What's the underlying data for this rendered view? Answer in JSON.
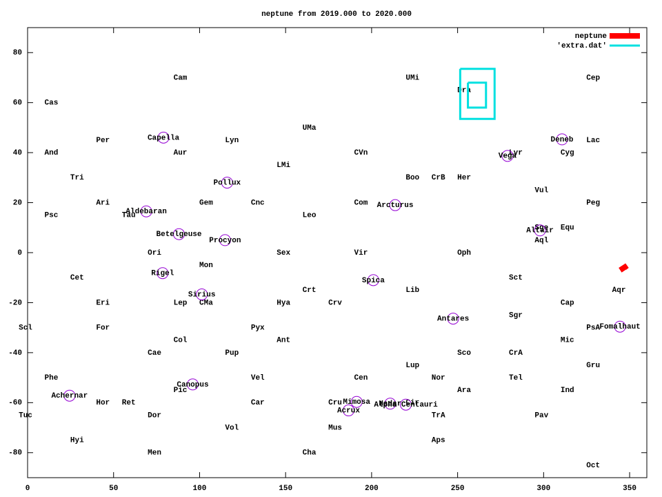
{
  "chart_data": {
    "type": "line",
    "title": "neptune from 2019.000 to 2020.000",
    "xlim": [
      0,
      360
    ],
    "ylim": [
      -90,
      90
    ],
    "xticks": [
      0,
      50,
      100,
      150,
      200,
      250,
      300,
      350
    ],
    "yticks": [
      -80,
      -60,
      -40,
      -20,
      0,
      20,
      40,
      60,
      80
    ],
    "legend": "top right",
    "series": [
      {
        "name": "neptune",
        "color": "#ff0000",
        "x": [
          344.5,
          348.5,
          347
        ],
        "values": [
          -7,
          -5.2,
          -6
        ]
      },
      {
        "name": "'extra.dat'",
        "color": "#00e0e0",
        "x": [
          251.5,
          271.5,
          271.5,
          251.5,
          251.5,
          null,
          256,
          266.5,
          266.5,
          256,
          256
        ],
        "values": [
          73.5,
          73.5,
          53.5,
          53.5,
          73.5,
          null,
          68,
          68,
          58,
          58,
          68
        ]
      }
    ],
    "constellations": {
      "names": [
        "Cam",
        "Cas",
        "And",
        "Per",
        "Tri",
        "Ari",
        "Psc",
        "Tau",
        "Aur",
        "Lyn",
        "Gem",
        "Cnc",
        "UMa",
        "LMi",
        "Leo",
        "Ori",
        "Mon",
        "Sex",
        "Cet",
        "Eri",
        "Lep",
        "CMa",
        "Hya",
        "Crt",
        "Crv",
        "Scl",
        "For",
        "Col",
        "Pyx",
        "Ant",
        "Cae",
        "Pup",
        "Phe",
        "Vel",
        "Pic",
        "Tuc",
        "Hor",
        "Ret",
        "Car",
        "Dor",
        "Hyi",
        "Vol",
        "Men",
        "Cha",
        "Mus",
        "Cru",
        "Cen",
        "UMi",
        "Cep",
        "Dra",
        "CVn",
        "Boo",
        "CrB",
        "Her",
        "Vul",
        "Lyr",
        "Cyg",
        "Lac",
        "Peg",
        "Com",
        "Sge",
        "Aql",
        "Equ",
        "Vir",
        "Oph",
        "Sct",
        "Lib",
        "Sgr",
        "Cap",
        "Aqr",
        "PsA",
        "Mic",
        "Sco",
        "CrA",
        "Lup",
        "Nor",
        "Tel",
        "Gru",
        "Ara",
        "Ind",
        "TrA",
        "Pav",
        "Aps",
        "Oct",
        "Cir"
      ],
      "x": [
        90,
        15,
        15,
        45,
        30,
        45,
        15,
        60,
        90,
        120,
        105,
        135,
        165,
        150,
        165,
        75,
        105,
        150,
        30,
        45,
        90,
        105,
        150,
        165,
        180,
        0,
        45,
        90,
        135,
        150,
        75,
        120,
        15,
        135,
        90,
        0,
        45,
        60,
        135,
        75,
        30,
        120,
        75,
        165,
        180,
        180,
        195,
        225,
        330,
        255,
        195,
        225,
        240,
        255,
        300,
        285,
        315,
        330,
        330,
        195,
        300,
        300,
        315,
        195,
        255,
        285,
        225,
        285,
        315,
        345,
        330,
        315,
        255,
        285,
        225,
        240,
        285,
        330,
        255,
        315,
        240,
        300,
        240,
        330,
        225
      ],
      "y": [
        70,
        60,
        40,
        45,
        30,
        20,
        15,
        15,
        40,
        45,
        20,
        20,
        50,
        35,
        15,
        0,
        -5,
        0,
        -10,
        -20,
        -20,
        -20,
        -20,
        -15,
        -20,
        -30,
        -30,
        -35,
        -30,
        -35,
        -40,
        -40,
        -50,
        -50,
        -55,
        -65,
        -60,
        -60,
        -60,
        -65,
        -75,
        -70,
        -80,
        -80,
        -70,
        -60,
        -50,
        70,
        70,
        65,
        40,
        30,
        30,
        30,
        25,
        40,
        40,
        45,
        20,
        20,
        10,
        5,
        10,
        0,
        0,
        -10,
        -15,
        -25,
        -20,
        -15,
        -30,
        -35,
        -40,
        -40,
        -45,
        -50,
        -50,
        -45,
        -55,
        -55,
        -65,
        -65,
        -75,
        -85,
        -60
      ]
    },
    "stars": {
      "names": [
        "Capella",
        "Aldebaran",
        "Pollux",
        "Betelgeuse",
        "Procyon",
        "Rigel",
        "Sirius",
        "Canopus",
        "Achernar",
        "Spica",
        "Arcturus",
        "Antares",
        "Vega",
        "Deneb",
        "Altair",
        "Fomalhaut",
        "Mimosa",
        "Acrux",
        "Hadar",
        "Alpha Centauri"
      ],
      "x": [
        79,
        69,
        116,
        88,
        114.8,
        78.5,
        101.3,
        96,
        24.4,
        201,
        213.7,
        247.4,
        279,
        310.7,
        297.9,
        344.4,
        191.3,
        186.6,
        210.8,
        219.9
      ],
      "y": [
        46,
        16.5,
        28,
        7.4,
        5,
        -8.2,
        -16.7,
        -52.7,
        -57.2,
        -11,
        19,
        -26.4,
        38.7,
        45.3,
        8.9,
        -29.6,
        -59.7,
        -63.1,
        -60.4,
        -60.8
      ]
    }
  }
}
